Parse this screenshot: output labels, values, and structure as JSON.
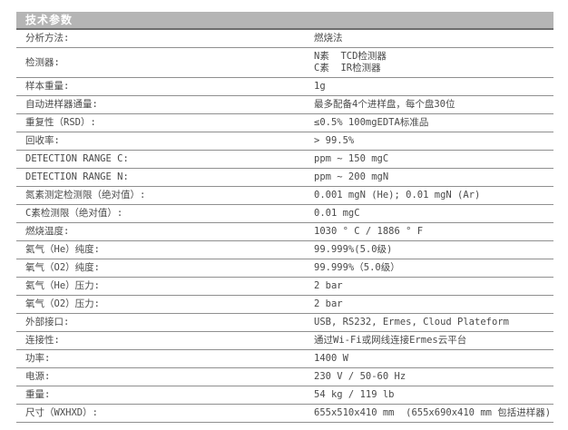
{
  "colors": {
    "header-bg": "#b5b5b5",
    "header-edge": "#6e6e6e",
    "rule": "#8f8f8f",
    "text": "#4a4a4a",
    "header-text": "#ffffff",
    "page-bg": "#ffffff"
  },
  "header": {
    "title": "技术参数"
  },
  "table": {
    "rows": [
      {
        "label": "分析方法:",
        "value": "燃烧法"
      },
      {
        "label": "检测器:",
        "value": "N素  TCD检测器\nC素  IR检测器"
      },
      {
        "label": "样本重量:",
        "value": "1g"
      },
      {
        "label": "自动进样器通量:",
        "value": "最多配备4个进样盘，每个盘30位"
      },
      {
        "label": "重复性（RSD）:",
        "value": "≤0.5% 100mgEDTA标准品"
      },
      {
        "label": "回收率:",
        "value": "> 99.5%"
      },
      {
        "label": "DETECTION RANGE C:",
        "value": "ppm ~ 150 mgC"
      },
      {
        "label": "DETECTION RANGE N:",
        "value": "ppm ~ 200 mgN"
      },
      {
        "label": "氮素测定检测限（绝对值）:",
        "value": "0.001 mgN (He); 0.01 mgN (Ar)"
      },
      {
        "label": "C素检测限（绝对值）:",
        "value": "0.01 mgC"
      },
      {
        "label": "燃烧温度:",
        "value": "1030 ° C / 1886 ° F"
      },
      {
        "label": "氦气（He）纯度:",
        "value": "99.999%(5.0级)"
      },
      {
        "label": "氧气（O2）纯度:",
        "value": "99.999%（5.0级）"
      },
      {
        "label": "氦气（He）压力:",
        "value": "2 bar"
      },
      {
        "label": "氧气（O2）压力:",
        "value": "2 bar"
      },
      {
        "label": "外部接口:",
        "value": "USB, RS232, Ermes, Cloud Plateform"
      },
      {
        "label": "连接性:",
        "value": "通过Wi-Fi或网线连接Ermes云平台"
      },
      {
        "label": "功率:",
        "value": "1400 W"
      },
      {
        "label": "电源:",
        "value": "230 V / 50-60 Hz"
      },
      {
        "label": "重量:",
        "value": "54 kg / 119 lb"
      },
      {
        "label": "尺寸（WXHXD）:",
        "value": "655x510x410 mm  (655x690x410 mm 包括进样器)"
      }
    ]
  }
}
